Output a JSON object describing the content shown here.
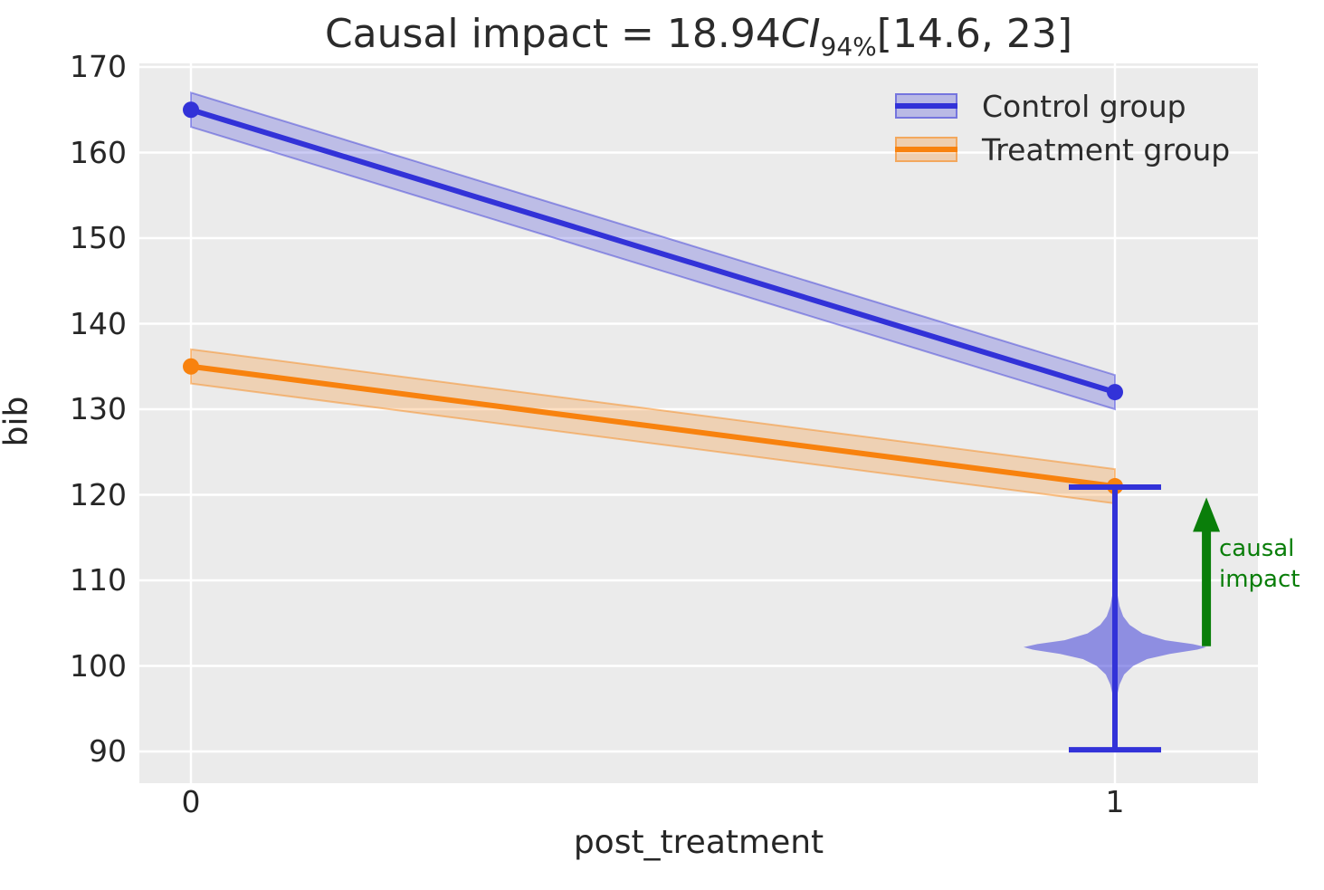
{
  "title": {
    "prefix": "Causal impact = 18.94",
    "ci_label": "CI",
    "ci_sub": "94%",
    "interval": "[14.6, 23]"
  },
  "axes": {
    "xlabel": "post_treatment",
    "ylabel": "bib"
  },
  "legend": {
    "items": [
      {
        "label": "Control group",
        "line_color": "#3232d8",
        "band_color": "rgba(50,50,216,0.27)"
      },
      {
        "label": "Treatment group",
        "line_color": "#f8820e",
        "band_color": "rgba(248,130,14,0.27)"
      }
    ]
  },
  "annotation": {
    "line1": "causal",
    "line2": "impact",
    "color": "#0a7e0a"
  },
  "chart_data": {
    "type": "line",
    "title": "Causal impact = 18.94 CI_94% [14.6, 23]",
    "xlabel": "post_treatment",
    "ylabel": "bib",
    "x": [
      0,
      1
    ],
    "x_ticks": [
      0,
      1
    ],
    "y_ticks": [
      90,
      100,
      110,
      120,
      130,
      140,
      150,
      160,
      170
    ],
    "xlim": [
      -0.056,
      1.155
    ],
    "ylim": [
      86.3,
      170.4
    ],
    "grid": true,
    "legend_position": "upper right",
    "plot_bg": "#ebebeb",
    "series": [
      {
        "name": "Control group",
        "values": [
          165,
          132
        ],
        "color": "#3232d8",
        "band_halfwidth": 2.0
      },
      {
        "name": "Treatment group",
        "values": [
          135,
          121
        ],
        "color": "#f8820e",
        "band_halfwidth": 2.0
      }
    ],
    "causal_impact": {
      "value": 18.94,
      "ci_level": "94%",
      "ci_lower": 14.6,
      "ci_upper": 23
    },
    "counterfactual_violin": {
      "x": 1,
      "color": "#3232d8",
      "whisker_top": 120.9,
      "whisker_bottom": 90.2,
      "peak_value": 102.2,
      "profile": [
        [
          113.0,
          0.0
        ],
        [
          110.0,
          0.012
        ],
        [
          108.5,
          0.025
        ],
        [
          107.0,
          0.05
        ],
        [
          105.8,
          0.09
        ],
        [
          104.8,
          0.16
        ],
        [
          103.8,
          0.3
        ],
        [
          103.0,
          0.55
        ],
        [
          102.55,
          0.85
        ],
        [
          102.2,
          1.0
        ],
        [
          101.9,
          0.9
        ],
        [
          101.4,
          0.6
        ],
        [
          100.8,
          0.35
        ],
        [
          100.0,
          0.2
        ],
        [
          99.0,
          0.1
        ],
        [
          97.8,
          0.05
        ],
        [
          96.5,
          0.022
        ],
        [
          95.0,
          0.012
        ],
        [
          93.5,
          0.0
        ]
      ]
    },
    "impact_arrow": {
      "x_offset": 0.099,
      "from_value": 102.3,
      "to_value": 119.7,
      "color": "#0a7e0a"
    }
  }
}
